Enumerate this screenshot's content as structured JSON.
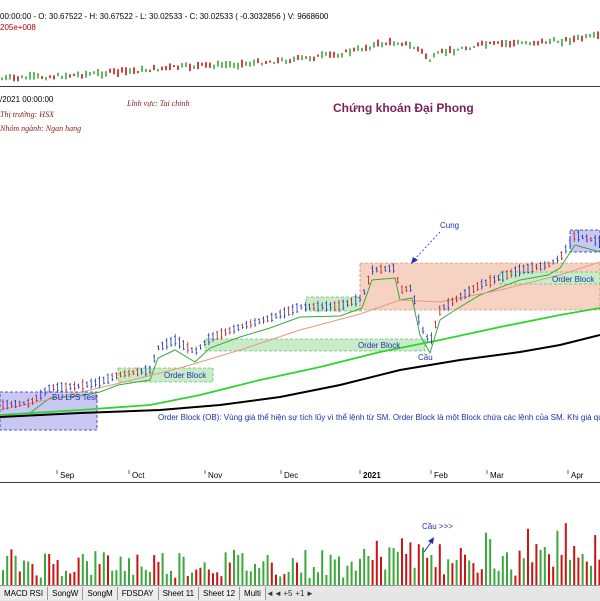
{
  "top_pane": {
    "ohlc_text": "00:00:00 - O: 30.67522 - H: 30.67522 - L: 30.02533 - C: 30.02533 ( -0.3032856 ) V: 9668600",
    "scale_text": "205e+008"
  },
  "main_pane": {
    "date_text": "/2021 00:00:00",
    "exchange_text": "Thị trường: HSX",
    "sector_text": "Nhóm ngành: Ngan hang",
    "field_text": "Lĩnh vực: Tai chinh",
    "brand_text": "Chứng khoán Đại Phong"
  },
  "annotations": {
    "cung": "Cung",
    "cau": "Cầu",
    "order_block": "Order Block",
    "bu_lps_test": "BU LPS  Test",
    "ob_definition": "Order Block (OB): Vùng giá thể hiện sự tích lũy vì thể lệnh từ SM. Order Block là một Block chứa các lệnh của SM. Khi giá quay về OB",
    "cau_volume": "Cầu >>>"
  },
  "x_axis": {
    "labels": [
      "Sep",
      "Oct",
      "Nov",
      "Dec",
      "2021",
      "Feb",
      "Mar",
      "Apr"
    ]
  },
  "sheet_tabs": [
    "MACD RSI",
    "SongW",
    "SongM",
    "FDSDAY",
    "Sheet 11",
    "Sheet 12",
    "Multi"
  ],
  "tab_nav": [
    "◄",
    "◄",
    "+5",
    "+1",
    "►"
  ],
  "colors": {
    "up_candle": "#1f2fb0",
    "down_candle": "#c81414",
    "ma_fast": "#3aa83a",
    "ma_mid": "#e39a82",
    "ma_slow_green": "#2fd42f",
    "ma_slow_black": "#000000",
    "order_block_fill": "#c8ecc8",
    "supply_fill": "#f6d2c2",
    "base_fill": "#c8c8f2",
    "brand": "#7b1f5a",
    "annotation_blue": "#1f2fb0"
  }
}
